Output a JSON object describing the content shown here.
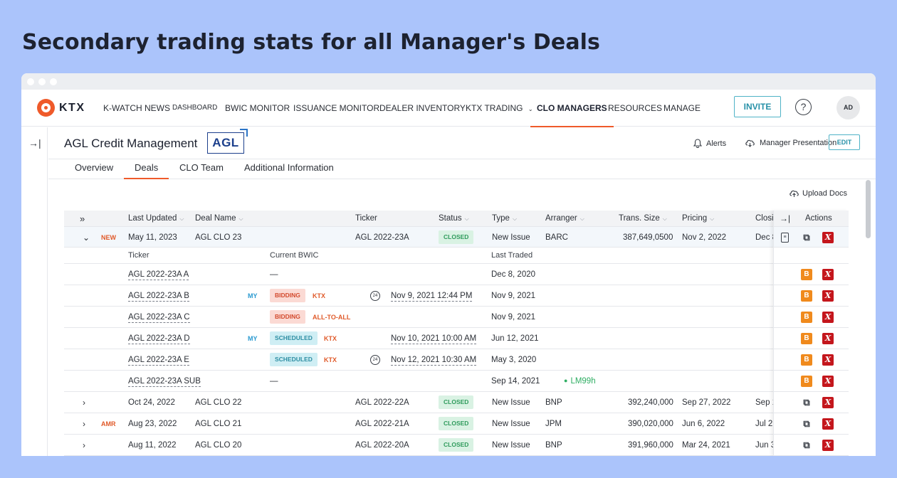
{
  "headline": "Secondary trading stats for all Manager's Deals",
  "logo_text": "KTX",
  "nav": [
    "K-WATCH NEWS",
    "DASHBOARD",
    "BWIC MONITOR",
    "ISSUANCE MONITOR",
    "DEALER INVENTORY",
    "KTX TRADING",
    "CLO MANAGERS",
    "RESOURCES",
    "MANAGE"
  ],
  "invite_label": "INVITE",
  "help_label": "?",
  "avatar_initials": "AD",
  "manager": {
    "name": "AGL Credit Management",
    "logo_text": "AGL",
    "alerts_label": "Alerts",
    "presentation_label": "Manager Presentation",
    "edit_label": "EDIT"
  },
  "tabs": [
    "Overview",
    "Deals",
    "CLO Team",
    "Additional Information"
  ],
  "upload_label": "Upload Docs",
  "columns": {
    "last_updated": "Last Updated",
    "deal_name": "Deal Name",
    "ticker": "Ticker",
    "status": "Status",
    "type": "Type",
    "arranger": "Arranger",
    "trans_size": "Trans. Size",
    "pricing": "Pricing",
    "closing": "Closi",
    "actions": "Actions"
  },
  "expanded_deal": {
    "flag": "NEW",
    "last_updated": "May 11, 2023",
    "deal_name": "AGL CLO 23",
    "ticker": "AGL 2022-23A",
    "status": "CLOSED",
    "type": "New Issue",
    "arranger": "BARC",
    "trans_size": "387,649,0500",
    "pricing": "Nov 2, 2022",
    "closing": "Dec 8"
  },
  "sub_columns": {
    "ticker": "Ticker",
    "current_bwic": "Current BWIC",
    "last_traded": "Last Traded"
  },
  "classes": [
    {
      "ticker": "AGL 2022-23A A",
      "my": "",
      "status": "",
      "venue": "",
      "bwic_dash": "—",
      "bwic_date": "",
      "last_traded": "Dec 8, 2020",
      "extra": ""
    },
    {
      "ticker": "AGL 2022-23A B",
      "my": "MY",
      "status": "BIDDING",
      "venue": "KTX",
      "clock": "24",
      "bwic_date": "Nov 9, 2021 12:44 PM",
      "last_traded": "Nov 9, 2021",
      "extra": ""
    },
    {
      "ticker": "AGL 2022-23A C",
      "my": "",
      "status": "BIDDING",
      "venue": "ALL-TO-ALL",
      "bwic_date": "",
      "last_traded": "Nov 9, 2021",
      "extra": ""
    },
    {
      "ticker": "AGL 2022-23A D",
      "my": "MY",
      "status": "SCHEDULED",
      "venue": "KTX",
      "bwic_date": "Nov 10, 2021 10:00 AM",
      "last_traded": "Jun 12, 2021",
      "extra": ""
    },
    {
      "ticker": "AGL 2022-23A E",
      "my": "",
      "status": "SCHEDULED",
      "venue": "KTX",
      "clock": "24",
      "bwic_date": "Nov 12, 2021 10:30 AM",
      "last_traded": "May 3, 2020",
      "extra": ""
    },
    {
      "ticker": "AGL 2022-23A SUB",
      "my": "",
      "status": "",
      "venue": "",
      "bwic_dash": "—",
      "bwic_date": "",
      "last_traded": "Sep 14, 2021",
      "extra": "LM99h"
    }
  ],
  "deals": [
    {
      "flag": "",
      "last_updated": "Oct 24, 2022",
      "deal_name": "AGL CLO 22",
      "ticker": "AGL 2022-22A",
      "status": "CLOSED",
      "type": "New Issue",
      "arranger": "BNP",
      "trans_size": "392,240,000",
      "pricing": "Sep 27, 2022",
      "closing": "Sep 1"
    },
    {
      "flag": "AMR",
      "last_updated": "Aug 23, 2022",
      "deal_name": "AGL CLO 21",
      "ticker": "AGL 2022-21A",
      "status": "CLOSED",
      "type": "New Issue",
      "arranger": "JPM",
      "trans_size": "390,020,000",
      "pricing": "Jun 6, 2022",
      "closing": "Jul 2"
    },
    {
      "flag": "",
      "last_updated": "Aug 11, 2022",
      "deal_name": "AGL CLO 20",
      "ticker": "AGL 2022-20A",
      "status": "CLOSED",
      "type": "New Issue",
      "arranger": "BNP",
      "trans_size": "391,960,000",
      "pricing": "Mar 24, 2021",
      "closing": "Jun 3"
    }
  ],
  "colors": {
    "accent": "#ef5a2a",
    "teal": "#2891a8",
    "closed": "#2f9b5c",
    "danger": "#c4161c",
    "bwic_b": "#f08a1d"
  },
  "icons": [
    "expand-all-icon",
    "chevron-down-icon",
    "chevron-right-icon",
    "bell-icon",
    "cloud-upload-icon",
    "clock-24-icon",
    "document-icon",
    "link-icon",
    "x-icon",
    "b-icon",
    "collapse-icon"
  ]
}
